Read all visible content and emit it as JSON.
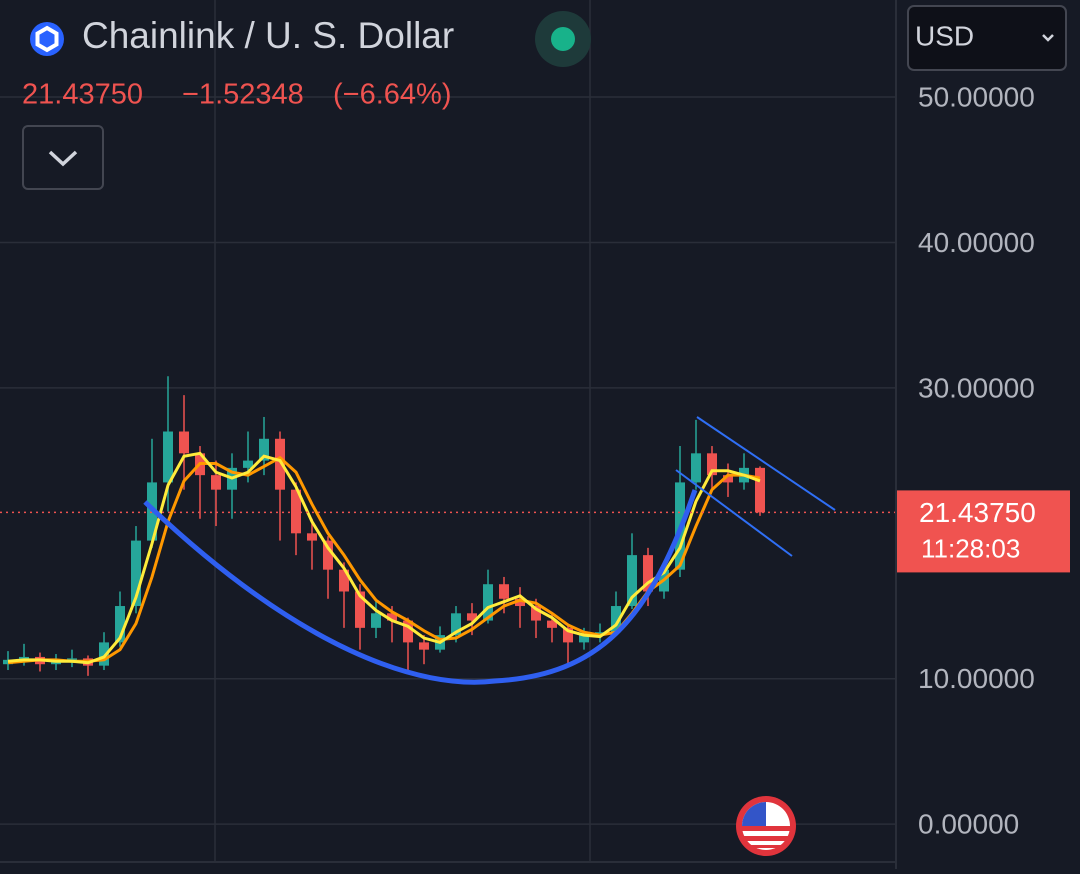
{
  "header": {
    "title": "Chainlink / U. S. Dollar",
    "last_price": "21.43750",
    "change": "−1.52348",
    "change_percent": "(−6.64%)",
    "currency": "USD"
  },
  "chart_data": {
    "type": "candlestick",
    "up_color": "#26a69a",
    "down_color": "#ef5350",
    "ylim": [
      -2.6,
      56.67
    ],
    "yticks": [
      {
        "value": 0,
        "label": "0.00000"
      },
      {
        "value": 10,
        "label": "10.00000"
      },
      {
        "value": 30,
        "label": "30.00000"
      },
      {
        "value": 40,
        "label": "40.00000"
      },
      {
        "value": 50,
        "label": "50.00000"
      }
    ],
    "grid": true,
    "open": [
      11.0,
      11.3,
      11.5,
      11.0,
      11.2,
      11.4,
      10.9,
      12.5,
      15.0,
      19.5,
      23.5,
      27.0,
      25.5,
      24.0,
      23.0,
      24.5,
      25.0,
      26.5,
      23.0,
      20.0,
      19.5,
      17.5,
      16.0,
      13.5,
      14.5,
      14.0,
      12.5,
      12.0,
      13.0,
      14.5,
      14.0,
      16.5,
      15.5,
      15.0,
      14.0,
      13.5,
      12.5,
      13.0,
      13.2,
      15.0,
      18.5,
      16.0,
      17.5,
      23.5,
      25.5,
      24.0,
      23.5,
      24.5
    ],
    "high": [
      11.9,
      12.4,
      11.8,
      11.7,
      12.0,
      11.6,
      13.2,
      16.0,
      20.5,
      26.5,
      30.8,
      29.5,
      26.0,
      25.0,
      25.5,
      27.0,
      28.0,
      27.0,
      23.5,
      21.0,
      19.8,
      18.0,
      16.5,
      15.5,
      15.0,
      14.2,
      13.0,
      13.6,
      15.0,
      15.2,
      17.5,
      17.0,
      16.3,
      15.5,
      14.5,
      13.8,
      13.5,
      13.8,
      16.0,
      20.0,
      19.0,
      18.0,
      26.0,
      27.8,
      26.0,
      24.8,
      25.5,
      24.6
    ],
    "low": [
      10.6,
      10.9,
      10.5,
      10.6,
      10.8,
      10.2,
      10.6,
      12.2,
      14.5,
      19.0,
      21.5,
      23.0,
      21.0,
      20.5,
      21.0,
      23.5,
      24.0,
      19.5,
      18.5,
      17.5,
      15.5,
      13.5,
      12.0,
      12.8,
      12.5,
      10.3,
      11.0,
      11.8,
      12.5,
      13.0,
      13.8,
      14.5,
      13.5,
      12.8,
      12.5,
      11.0,
      12.0,
      12.5,
      13.0,
      14.8,
      15.0,
      15.5,
      17.0,
      23.0,
      23.0,
      22.5,
      23.0,
      21.2
    ],
    "close": [
      11.3,
      11.5,
      11.0,
      11.2,
      11.4,
      10.9,
      12.5,
      15.0,
      19.5,
      23.5,
      27.0,
      25.5,
      24.0,
      23.0,
      24.5,
      25.0,
      26.5,
      23.0,
      20.0,
      19.5,
      17.5,
      16.0,
      13.5,
      14.5,
      14.0,
      12.5,
      12.0,
      13.0,
      14.5,
      14.0,
      16.5,
      15.5,
      15.0,
      14.0,
      13.5,
      12.5,
      13.0,
      13.2,
      15.0,
      18.5,
      16.0,
      17.5,
      23.5,
      25.5,
      24.0,
      23.5,
      24.5,
      21.4375
    ],
    "series": [
      {
        "color": "#ff9800",
        "values": [
          11.1,
          11.2,
          11.3,
          11.3,
          11.2,
          11.2,
          11.3,
          12.0,
          13.8,
          17.0,
          20.8,
          23.6,
          24.8,
          24.8,
          24.2,
          24.0,
          24.6,
          25.2,
          24.2,
          22.0,
          20.0,
          18.5,
          16.8,
          15.4,
          14.6,
          14.0,
          13.3,
          12.7,
          12.8,
          13.4,
          14.2,
          15.0,
          15.4,
          15.2,
          14.5,
          13.7,
          13.2,
          13.0,
          13.2,
          14.5,
          16.0,
          16.8,
          17.8,
          20.5,
          23.0,
          24.0,
          24.0,
          23.8
        ]
      },
      {
        "color": "#ffeb3b",
        "values": [
          11.2,
          11.3,
          11.3,
          11.2,
          11.2,
          11.1,
          11.5,
          12.8,
          15.6,
          19.3,
          23.3,
          25.3,
          25.5,
          24.2,
          23.8,
          24.2,
          25.3,
          25.0,
          23.2,
          20.8,
          19.0,
          17.6,
          15.7,
          14.7,
          14.0,
          13.6,
          12.8,
          12.5,
          13.2,
          13.8,
          14.9,
          15.3,
          15.7,
          14.8,
          14.2,
          13.3,
          13.0,
          12.9,
          13.7,
          15.6,
          16.6,
          17.3,
          19.0,
          22.2,
          24.3,
          24.3,
          24.0,
          23.6
        ]
      }
    ],
    "last_value": 21.4375,
    "last_value_label": "21.43750",
    "countdown": "11:28:03"
  }
}
